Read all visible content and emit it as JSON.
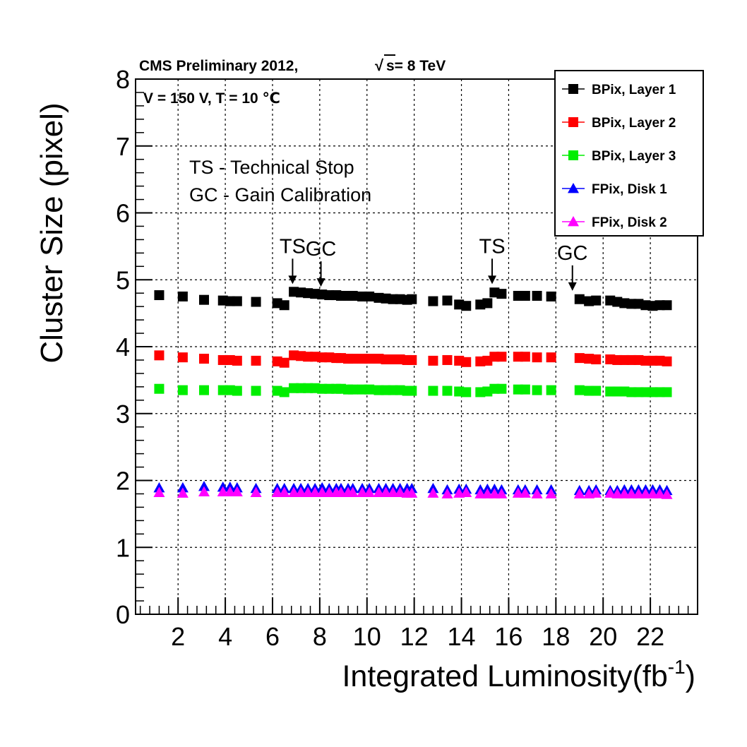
{
  "chart_data": {
    "type": "scatter",
    "title": "CMS Preliminary 2012,",
    "energy_label": "s= 8 TeV",
    "conditions": "V = 150 V, T = 10 ℃",
    "notes": [
      "TS - Technical Stop",
      "GC - Gain Calibration"
    ],
    "xlabel": "Integrated Luminosity(fb",
    "xlabel_sup": "-1",
    "xlabel_close": ")",
    "ylabel": "Cluster Size (pixel)",
    "xlim": [
      0.2,
      24.0
    ],
    "ylim": [
      0,
      8
    ],
    "xticks": [
      "2",
      "4",
      "6",
      "8",
      "10",
      "12",
      "14",
      "16",
      "18",
      "20",
      "22"
    ],
    "yticks": [
      "0",
      "1",
      "2",
      "3",
      "4",
      "5",
      "6",
      "7",
      "8"
    ],
    "grid": true,
    "legend_position": "top-right",
    "annotations": [
      {
        "label": "TS",
        "x": 6.85,
        "y": 4.83
      },
      {
        "label": "GC",
        "x": 8.05,
        "y": 4.79
      },
      {
        "label": "TS",
        "x": 15.3,
        "y": 4.83
      },
      {
        "label": "GC",
        "x": 18.7,
        "y": 4.73
      }
    ],
    "x": [
      1.2,
      2.2,
      3.1,
      3.9,
      4.2,
      4.5,
      5.3,
      6.2,
      6.5,
      6.9,
      7.2,
      7.5,
      7.8,
      8.1,
      8.4,
      8.7,
      8.9,
      9.2,
      9.4,
      9.8,
      10.1,
      10.5,
      10.8,
      11.1,
      11.4,
      11.7,
      11.9,
      12.8,
      13.4,
      13.9,
      14.2,
      14.8,
      15.1,
      15.4,
      15.7,
      16.4,
      16.7,
      17.2,
      17.8,
      19.0,
      19.4,
      19.7,
      20.3,
      20.6,
      20.9,
      21.2,
      21.5,
      21.8,
      22.1,
      22.4,
      22.7
    ],
    "series": [
      {
        "name": "BPix, Layer 1",
        "marker": "square",
        "color": "#000000",
        "values": [
          4.77,
          4.75,
          4.7,
          4.69,
          4.68,
          4.68,
          4.67,
          4.65,
          4.62,
          4.82,
          4.81,
          4.8,
          4.79,
          4.78,
          4.77,
          4.77,
          4.76,
          4.76,
          4.76,
          4.75,
          4.75,
          4.73,
          4.72,
          4.71,
          4.71,
          4.7,
          4.71,
          4.68,
          4.69,
          4.63,
          4.61,
          4.63,
          4.65,
          4.81,
          4.79,
          4.76,
          4.76,
          4.76,
          4.75,
          4.71,
          4.68,
          4.69,
          4.69,
          4.67,
          4.65,
          4.64,
          4.64,
          4.62,
          4.61,
          4.62,
          4.62
        ]
      },
      {
        "name": "BPix, Layer 2",
        "marker": "square",
        "color": "#ff0000",
        "values": [
          3.87,
          3.84,
          3.82,
          3.8,
          3.8,
          3.79,
          3.79,
          3.78,
          3.76,
          3.87,
          3.86,
          3.85,
          3.85,
          3.84,
          3.84,
          3.83,
          3.83,
          3.82,
          3.82,
          3.82,
          3.82,
          3.82,
          3.81,
          3.81,
          3.81,
          3.8,
          3.8,
          3.79,
          3.8,
          3.79,
          3.77,
          3.78,
          3.79,
          3.85,
          3.85,
          3.85,
          3.85,
          3.84,
          3.84,
          3.83,
          3.82,
          3.81,
          3.81,
          3.8,
          3.8,
          3.8,
          3.8,
          3.79,
          3.79,
          3.79,
          3.78
        ]
      },
      {
        "name": "BPix, Layer 3",
        "marker": "square",
        "color": "#00ee00",
        "values": [
          3.37,
          3.35,
          3.35,
          3.35,
          3.35,
          3.34,
          3.34,
          3.34,
          3.32,
          3.38,
          3.38,
          3.38,
          3.38,
          3.37,
          3.37,
          3.37,
          3.37,
          3.36,
          3.36,
          3.36,
          3.36,
          3.35,
          3.35,
          3.35,
          3.35,
          3.34,
          3.34,
          3.34,
          3.34,
          3.33,
          3.32,
          3.32,
          3.33,
          3.37,
          3.37,
          3.36,
          3.36,
          3.35,
          3.35,
          3.35,
          3.34,
          3.34,
          3.33,
          3.33,
          3.33,
          3.32,
          3.32,
          3.32,
          3.32,
          3.32,
          3.32
        ]
      },
      {
        "name": "FPix, Disk 1",
        "marker": "triangle",
        "color": "#0000ff",
        "values": [
          1.89,
          1.89,
          1.91,
          1.9,
          1.9,
          1.89,
          1.88,
          1.88,
          1.88,
          1.88,
          1.88,
          1.88,
          1.88,
          1.89,
          1.88,
          1.88,
          1.88,
          1.88,
          1.88,
          1.88,
          1.88,
          1.88,
          1.88,
          1.88,
          1.88,
          1.88,
          1.88,
          1.88,
          1.86,
          1.87,
          1.87,
          1.86,
          1.87,
          1.87,
          1.86,
          1.86,
          1.86,
          1.86,
          1.86,
          1.85,
          1.85,
          1.86,
          1.85,
          1.85,
          1.86,
          1.86,
          1.86,
          1.86,
          1.86,
          1.86,
          1.85
        ]
      },
      {
        "name": "FPix, Disk 2",
        "marker": "triangle",
        "color": "#ff00ff",
        "values": [
          1.82,
          1.81,
          1.83,
          1.83,
          1.83,
          1.83,
          1.82,
          1.82,
          1.82,
          1.82,
          1.82,
          1.82,
          1.82,
          1.82,
          1.82,
          1.82,
          1.82,
          1.82,
          1.82,
          1.82,
          1.82,
          1.82,
          1.82,
          1.82,
          1.82,
          1.81,
          1.81,
          1.81,
          1.8,
          1.81,
          1.82,
          1.8,
          1.8,
          1.8,
          1.8,
          1.81,
          1.81,
          1.8,
          1.8,
          1.8,
          1.8,
          1.81,
          1.81,
          1.8,
          1.8,
          1.8,
          1.8,
          1.8,
          1.8,
          1.8,
          1.79
        ]
      }
    ]
  }
}
